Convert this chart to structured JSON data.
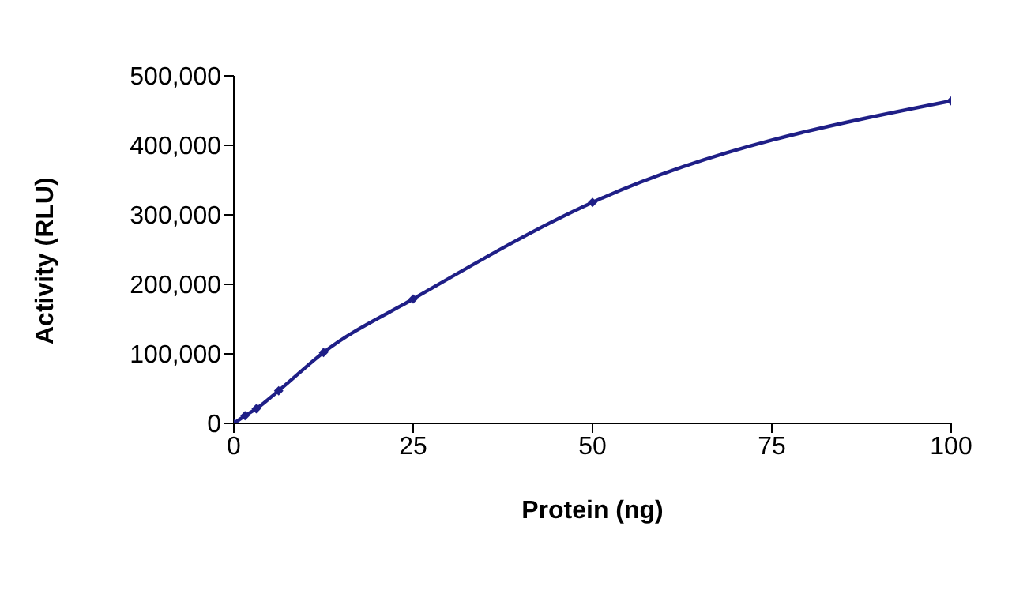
{
  "chart_data": {
    "type": "line",
    "xlabel": "Protein (ng)",
    "ylabel": "Activity (RLU)",
    "x": [
      0,
      1.5625,
      3.125,
      6.25,
      12.5,
      25,
      50,
      100
    ],
    "series": [
      {
        "color": "#1f1f87",
        "values": [
          0,
          11000,
          21000,
          47000,
          102000,
          179000,
          318000,
          464000
        ]
      }
    ],
    "xlim": [
      0,
      100
    ],
    "xticks": [
      0,
      25,
      50,
      75,
      100
    ],
    "ylim": [
      0,
      500000
    ],
    "yticks": [
      0,
      {
        "value": 100000,
        "label": "100,000"
      },
      {
        "value": 200000,
        "label": "200,000"
      },
      {
        "value": 300000,
        "label": "300,000"
      },
      {
        "value": 400000,
        "label": "400,000"
      },
      {
        "value": 500000,
        "label": "500,000"
      }
    ],
    "grid": false,
    "legend": false,
    "marker": "diamond",
    "line_style": "solid"
  }
}
